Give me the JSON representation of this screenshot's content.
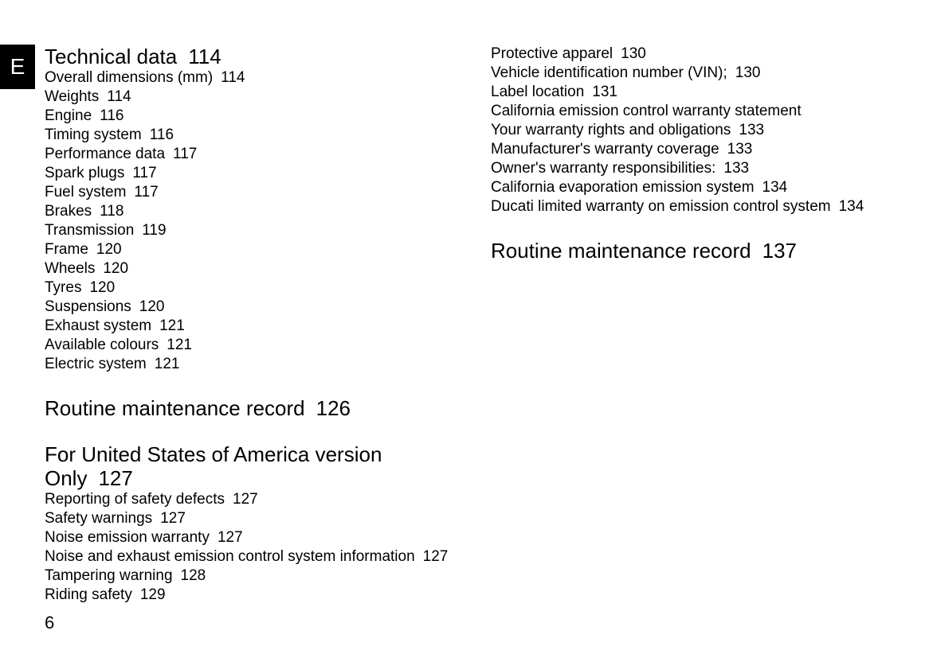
{
  "tab_letter": "E",
  "page_number": "6",
  "blocks": [
    {
      "type": "section",
      "heading": {
        "text": "Technical data",
        "page": "114",
        "spaced": false
      },
      "entries": [
        {
          "text": "Overall dimensions (mm)",
          "page": "114"
        },
        {
          "text": "Weights",
          "page": "114"
        },
        {
          "text": "Engine",
          "page": "116"
        },
        {
          "text": "Timing system",
          "page": "116"
        },
        {
          "text": "Performance data",
          "page": "117"
        },
        {
          "text": "Spark plugs",
          "page": "117"
        },
        {
          "text": "Fuel system",
          "page": "117"
        },
        {
          "text": "Brakes",
          "page": "118"
        },
        {
          "text": "Transmission",
          "page": "119"
        },
        {
          "text": "Frame",
          "page": "120"
        },
        {
          "text": "Wheels",
          "page": "120"
        },
        {
          "text": "Tyres",
          "page": "120"
        },
        {
          "text": "Suspensions",
          "page": "120"
        },
        {
          "text": "Exhaust system",
          "page": "121"
        },
        {
          "text": "Available colours",
          "page": "121"
        },
        {
          "text": "Electric system",
          "page": "121"
        }
      ]
    },
    {
      "type": "heading_only",
      "heading": {
        "text": "Routine maintenance record",
        "page": "126",
        "spaced": true
      }
    },
    {
      "type": "section",
      "heading": {
        "text": "For United States of America version Only",
        "page": "127",
        "spaced": true
      },
      "entries": [
        {
          "text": "Reporting of safety defects",
          "page": "127"
        },
        {
          "text": "Safety warnings",
          "page": "127"
        },
        {
          "text": "Noise emission warranty",
          "page": "127"
        },
        {
          "text": "Noise and exhaust emission control system information",
          "page": "127"
        },
        {
          "text": "Tampering warning",
          "page": "128"
        },
        {
          "text": "Riding safety",
          "page": "129"
        },
        {
          "text": "Protective apparel",
          "page": "130"
        },
        {
          "text": "Vehicle identification number (VIN);",
          "page": "130"
        },
        {
          "text": "Label location",
          "page": "131"
        },
        {
          "text": "California emission control warranty statement",
          "page": ""
        },
        {
          "text": "Your warranty rights and obligations",
          "page": "133"
        },
        {
          "text": "Manufacturer's warranty coverage",
          "page": "133"
        },
        {
          "text": "Owner's warranty responsibilities:",
          "page": "133"
        },
        {
          "text": "California evaporation emission system",
          "page": "134"
        },
        {
          "text": "Ducati limited warranty on emission control system",
          "page": "134"
        }
      ]
    },
    {
      "type": "heading_only",
      "heading": {
        "text": "Routine maintenance record",
        "page": "137",
        "spaced": true
      }
    }
  ]
}
